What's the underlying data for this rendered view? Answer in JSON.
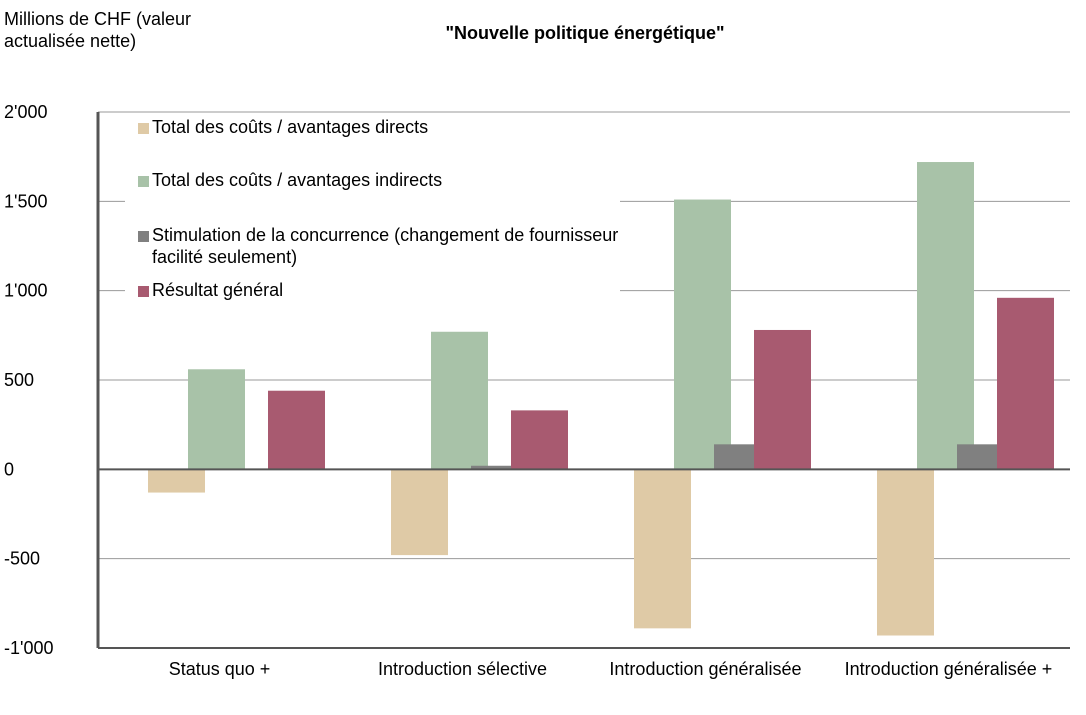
{
  "chart_data": {
    "type": "bar",
    "title": "\"Nouvelle politique énergétique\"",
    "y_axis_label": "Millions de CHF (valeur actualisée nette)",
    "categories": [
      "Status quo +",
      "Introduction sélective",
      "Introduction généralisée",
      "Introduction généralisée +"
    ],
    "series": [
      {
        "name": "Total des coûts / avantages directs",
        "color": "#dfcaa6",
        "values": [
          -130,
          -480,
          -890,
          -930
        ]
      },
      {
        "name": "Total des coûts / avantages indirects",
        "color": "#a8c2a8",
        "values": [
          560,
          770,
          1510,
          1720
        ]
      },
      {
        "name": "Stimulation de la concurrence (changement de fournisseur facilité seulement)",
        "color": "#808080",
        "values": [
          0,
          20,
          140,
          140
        ]
      },
      {
        "name": "Résultat général",
        "color": "#a85a70",
        "values": [
          440,
          330,
          780,
          960
        ]
      }
    ],
    "ylim": [
      -1000,
      2000
    ],
    "yticks": [
      {
        "value": -1000,
        "label": "-1'000"
      },
      -500,
      0,
      500,
      {
        "value": 1000,
        "label": "1'000"
      },
      {
        "value": 1500,
        "label": "1'500"
      },
      {
        "value": 2000,
        "label": "2'000"
      }
    ],
    "grid": true,
    "legend": "top-left"
  }
}
